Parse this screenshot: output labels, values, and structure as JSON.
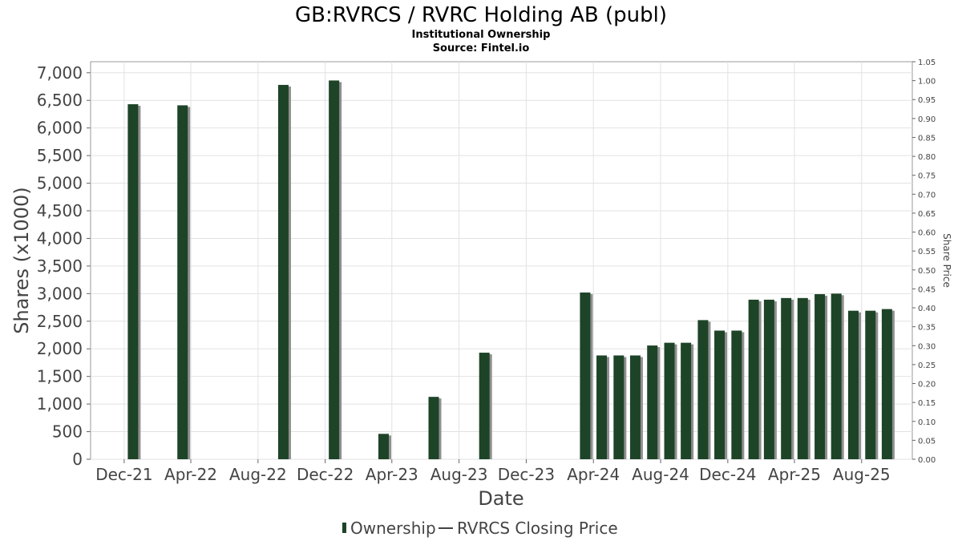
{
  "chart_data": {
    "type": "bar",
    "title": "GB:RVRCS / RVRC Holding AB (publ)",
    "subtitle": "Institutional Ownership",
    "source": "Source: Fintel.io",
    "xlabel": "Date",
    "ylabel": "Shares (x1000)",
    "y2label": "Share Price",
    "x_tick_labels": [
      "Dec-21",
      "Apr-22",
      "Aug-22",
      "Dec-22",
      "Apr-23",
      "Aug-23",
      "Dec-23",
      "Apr-24",
      "Aug-24",
      "Dec-24",
      "Apr-25",
      "Aug-25"
    ],
    "y_tick_labels": [
      "0",
      "500",
      "1,000",
      "1,500",
      "2,000",
      "2,500",
      "3,000",
      "3,500",
      "4,000",
      "4,500",
      "5,000",
      "5,500",
      "6,000",
      "6,500",
      "7,000"
    ],
    "y2_tick_labels": [
      "0.00",
      "0.05",
      "0.10",
      "0.15",
      "0.20",
      "0.25",
      "0.30",
      "0.35",
      "0.40",
      "0.45",
      "0.50",
      "0.55",
      "0.60",
      "0.65",
      "0.70",
      "0.75",
      "0.80",
      "0.85",
      "0.90",
      "0.95",
      "1.00",
      "1.05"
    ],
    "ylim": [
      0,
      7200
    ],
    "y2lim": [
      0,
      1.05
    ],
    "xlim": [
      "2021-10-15",
      "2025-11-15"
    ],
    "grid": true,
    "legend_position": "bottom",
    "colors": {
      "bar": "#1e4428",
      "bar_shadow": "#8f8f8f",
      "price_line": "#444444"
    },
    "series": [
      {
        "name": "Ownership",
        "type": "bar",
        "x": [
          "2021-12-31",
          "2022-03-31",
          "2022-09-30",
          "2022-12-31",
          "2023-03-31",
          "2023-06-30",
          "2023-09-30",
          "2024-03-31",
          "2024-04-30",
          "2024-05-31",
          "2024-06-30",
          "2024-07-31",
          "2024-08-31",
          "2024-09-30",
          "2024-10-31",
          "2024-11-30",
          "2024-12-31",
          "2025-01-31",
          "2025-02-28",
          "2025-03-31",
          "2025-04-30",
          "2025-05-31",
          "2025-06-30",
          "2025-07-31",
          "2025-08-31",
          "2025-09-30"
        ],
        "values": [
          6430,
          6410,
          6780,
          6860,
          460,
          1130,
          1930,
          3020,
          1880,
          1880,
          1880,
          2060,
          2110,
          2110,
          2520,
          2330,
          2330,
          2890,
          2890,
          2920,
          2920,
          2990,
          3000,
          2690,
          2690,
          2720
        ]
      },
      {
        "name": "RVRCS Closing Price",
        "type": "line",
        "axis": "right",
        "values": []
      }
    ]
  }
}
